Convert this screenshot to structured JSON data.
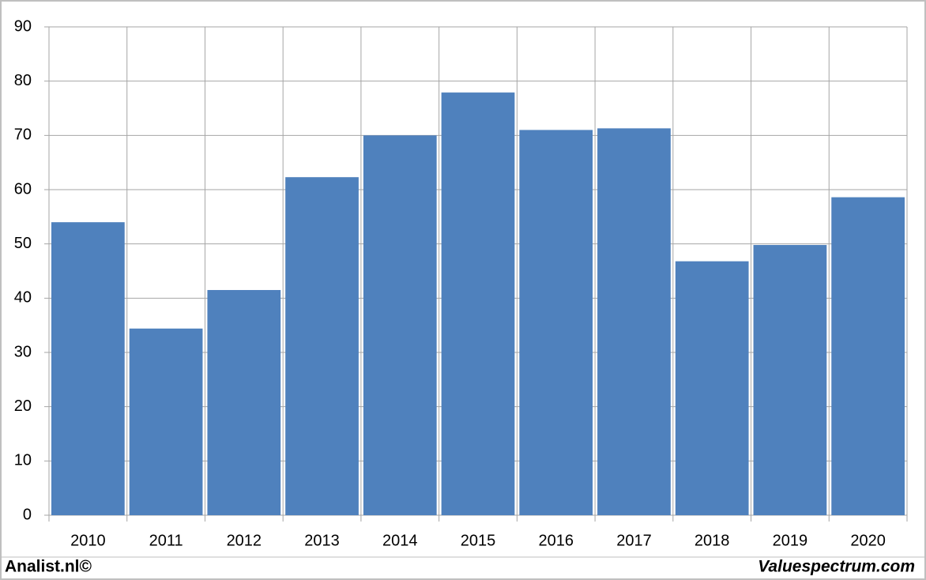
{
  "chart_data": {
    "type": "bar",
    "categories": [
      "2010",
      "2011",
      "2012",
      "2013",
      "2014",
      "2015",
      "2016",
      "2017",
      "2018",
      "2019",
      "2020"
    ],
    "values": [
      54,
      34.4,
      41.5,
      62.3,
      70,
      77.9,
      71,
      71.3,
      46.8,
      49.8,
      58.6
    ],
    "color": "#4f81bd",
    "ylim": [
      0,
      90
    ],
    "yticks": [
      0,
      10,
      20,
      30,
      40,
      50,
      60,
      70,
      80,
      90
    ],
    "grid": true,
    "annotations": [
      "Analist.nl©",
      "Valuespectrum.com"
    ]
  }
}
